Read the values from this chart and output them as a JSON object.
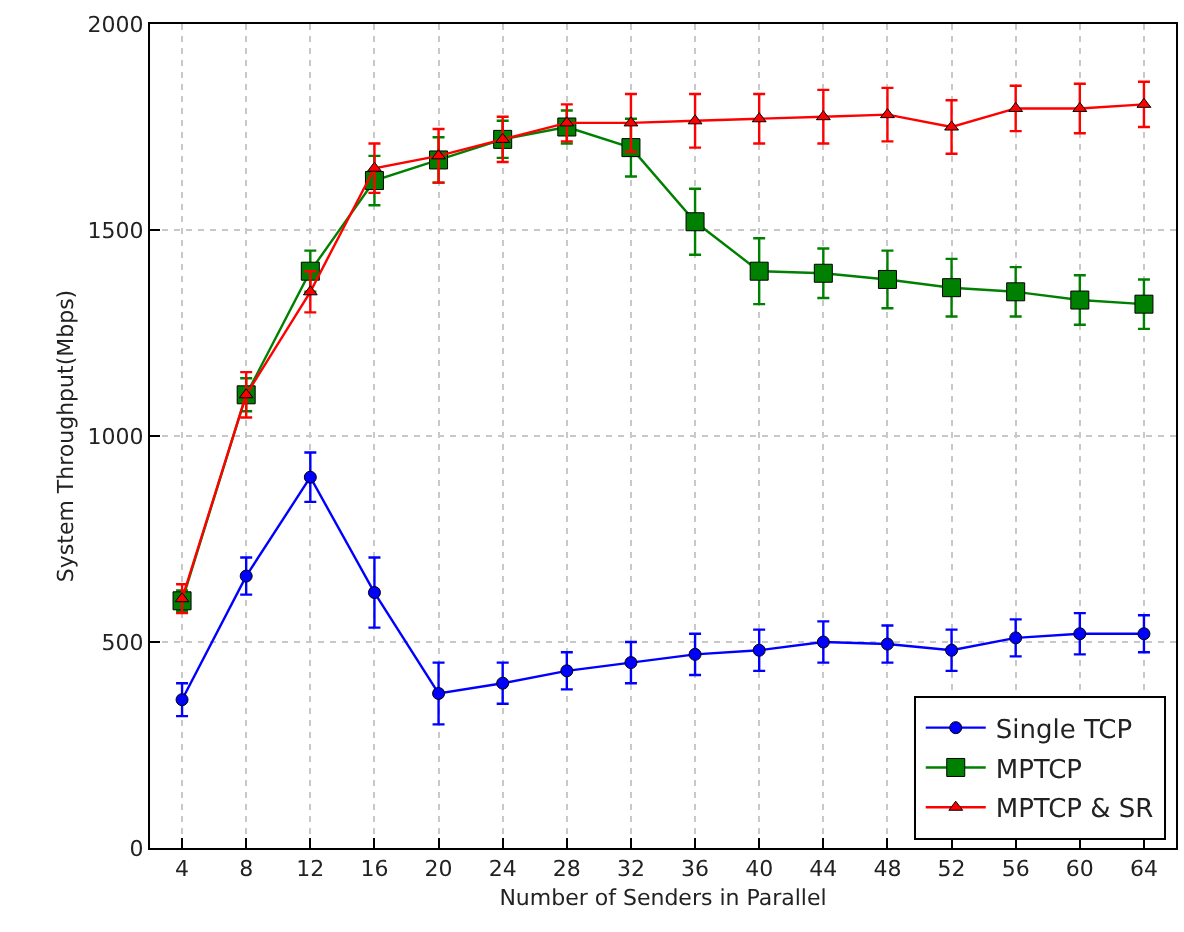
{
  "chart_data": {
    "type": "line",
    "xlabel": "Number of Senders in Parallel",
    "ylabel": "System Throughput(Mbps)",
    "xlim": [
      2,
      66
    ],
    "xticks": [
      4,
      8,
      12,
      16,
      20,
      24,
      28,
      32,
      36,
      40,
      44,
      48,
      52,
      56,
      60,
      64
    ],
    "ylim": [
      0,
      2000
    ],
    "yticks": [
      0,
      500,
      1000,
      1500,
      2000
    ],
    "grid": true,
    "legend": "bottom right",
    "x": [
      4,
      8,
      12,
      16,
      20,
      24,
      28,
      32,
      36,
      40,
      44,
      48,
      52,
      56,
      60,
      64
    ],
    "series": [
      {
        "name": "Single TCP",
        "color": "#0000ff",
        "marker": "circle",
        "values": [
          360,
          660,
          900,
          620,
          375,
          400,
          430,
          450,
          470,
          480,
          500,
          495,
          480,
          510,
          520,
          520
        ],
        "errors": [
          40,
          45,
          60,
          85,
          75,
          50,
          45,
          50,
          50,
          50,
          50,
          45,
          50,
          45,
          50,
          45
        ]
      },
      {
        "name": "MPTCP",
        "color": "#008000",
        "marker": "square",
        "values": [
          600,
          1100,
          1400,
          1620,
          1670,
          1720,
          1750,
          1700,
          1520,
          1400,
          1395,
          1380,
          1360,
          1350,
          1330,
          1320
        ],
        "errors": [
          25,
          40,
          50,
          60,
          55,
          45,
          40,
          70,
          80,
          80,
          60,
          70,
          70,
          60,
          60,
          60
        ]
      },
      {
        "name": "MPTCP & SR",
        "color": "#ff0000",
        "marker": "triangle",
        "values": [
          605,
          1100,
          1350,
          1650,
          1680,
          1720,
          1760,
          1760,
          1765,
          1770,
          1775,
          1780,
          1750,
          1795,
          1795,
          1805
        ],
        "errors": [
          35,
          55,
          50,
          60,
          65,
          55,
          45,
          70,
          65,
          60,
          65,
          65,
          65,
          55,
          60,
          55
        ]
      }
    ]
  }
}
